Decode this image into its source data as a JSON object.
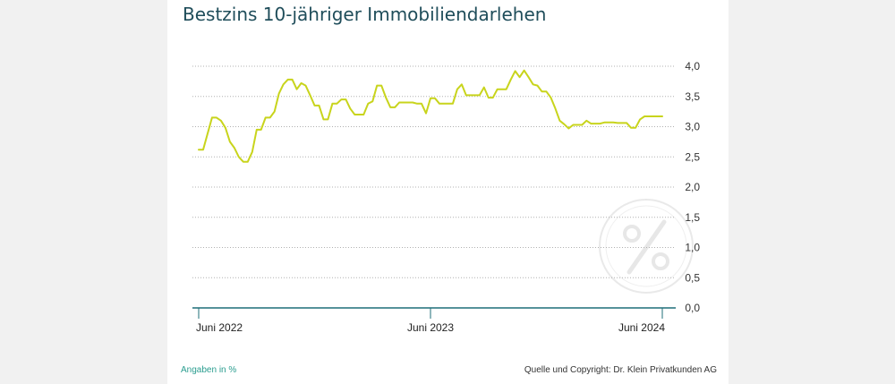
{
  "colors": {
    "line": "#c8d41c",
    "axis": "#1f6f78",
    "grid": "#b0b0b0",
    "title": "#1f4d5a",
    "footer_left": "#2a9d8f"
  },
  "title": "Bestzins 10-jähriger Immobiliendarlehen",
  "footer": {
    "left": "Angaben in %",
    "right": "Quelle und Copyright: Dr. Klein Privatkunden AG"
  },
  "watermark_icon": "percent-circle-icon",
  "chart_data": {
    "type": "line",
    "title": "Bestzins 10-jähriger Immobiliendarlehen",
    "xlabel": "",
    "ylabel": "",
    "ylim": [
      0,
      4
    ],
    "grid": true,
    "y_ticks": [
      "0,0",
      "0,5",
      "1,0",
      "1,5",
      "2,0",
      "2,5",
      "3,0",
      "3,5",
      "4,0"
    ],
    "x_ticks": [
      {
        "label": "Juni 2022",
        "x": 0
      },
      {
        "label": "Juni 2023",
        "x": 52
      },
      {
        "label": "Juni 2024",
        "x": 104
      }
    ],
    "x_range": [
      0,
      104
    ],
    "series": [
      {
        "points": [
          [
            0,
            2.62
          ],
          [
            1,
            2.62
          ],
          [
            3,
            3.15
          ],
          [
            4,
            3.15
          ],
          [
            5,
            3.1
          ],
          [
            6,
            2.98
          ],
          [
            7,
            2.75
          ],
          [
            8,
            2.65
          ],
          [
            9,
            2.5
          ],
          [
            10,
            2.42
          ],
          [
            11,
            2.42
          ],
          [
            12,
            2.58
          ],
          [
            13,
            2.95
          ],
          [
            14,
            2.95
          ],
          [
            15,
            3.15
          ],
          [
            16,
            3.15
          ],
          [
            17,
            3.25
          ],
          [
            18,
            3.55
          ],
          [
            19,
            3.7
          ],
          [
            20,
            3.78
          ],
          [
            21,
            3.78
          ],
          [
            22,
            3.62
          ],
          [
            23,
            3.72
          ],
          [
            24,
            3.68
          ],
          [
            25,
            3.52
          ],
          [
            26,
            3.35
          ],
          [
            27,
            3.35
          ],
          [
            28,
            3.12
          ],
          [
            29,
            3.12
          ],
          [
            30,
            3.38
          ],
          [
            31,
            3.38
          ],
          [
            32,
            3.45
          ],
          [
            33,
            3.45
          ],
          [
            34,
            3.3
          ],
          [
            35,
            3.2
          ],
          [
            36,
            3.2
          ],
          [
            37,
            3.2
          ],
          [
            38,
            3.38
          ],
          [
            39,
            3.42
          ],
          [
            40,
            3.68
          ],
          [
            41,
            3.68
          ],
          [
            42,
            3.48
          ],
          [
            43,
            3.32
          ],
          [
            44,
            3.32
          ],
          [
            45,
            3.4
          ],
          [
            46,
            3.4
          ],
          [
            47,
            3.4
          ],
          [
            48,
            3.4
          ],
          [
            49,
            3.38
          ],
          [
            50,
            3.38
          ],
          [
            51,
            3.22
          ],
          [
            52,
            3.47
          ],
          [
            53,
            3.47
          ],
          [
            54,
            3.38
          ],
          [
            55,
            3.38
          ],
          [
            56,
            3.38
          ],
          [
            57,
            3.38
          ],
          [
            58,
            3.62
          ],
          [
            59,
            3.7
          ],
          [
            60,
            3.52
          ],
          [
            61,
            3.52
          ],
          [
            62,
            3.52
          ],
          [
            63,
            3.52
          ],
          [
            64,
            3.65
          ],
          [
            65,
            3.48
          ],
          [
            66,
            3.48
          ],
          [
            67,
            3.62
          ],
          [
            68,
            3.62
          ],
          [
            69,
            3.62
          ],
          [
            70,
            3.78
          ],
          [
            71,
            3.92
          ],
          [
            72,
            3.82
          ],
          [
            73,
            3.93
          ],
          [
            74,
            3.82
          ],
          [
            75,
            3.7
          ],
          [
            76,
            3.68
          ],
          [
            77,
            3.58
          ],
          [
            78,
            3.58
          ],
          [
            79,
            3.48
          ],
          [
            80,
            3.3
          ],
          [
            81,
            3.1
          ],
          [
            82,
            3.04
          ],
          [
            83,
            2.97
          ],
          [
            84,
            3.03
          ],
          [
            85,
            3.03
          ],
          [
            86,
            3.03
          ],
          [
            87,
            3.1
          ],
          [
            88,
            3.05
          ],
          [
            89,
            3.05
          ],
          [
            90,
            3.05
          ],
          [
            91,
            3.07
          ],
          [
            92,
            3.07
          ],
          [
            93,
            3.07
          ],
          [
            94,
            3.06
          ],
          [
            95,
            3.06
          ],
          [
            96,
            3.06
          ],
          [
            97,
            2.98
          ],
          [
            98,
            2.98
          ],
          [
            99,
            3.12
          ],
          [
            100,
            3.17
          ],
          [
            101,
            3.17
          ],
          [
            102,
            3.17
          ],
          [
            103,
            3.17
          ],
          [
            104,
            3.17
          ]
        ]
      }
    ]
  }
}
